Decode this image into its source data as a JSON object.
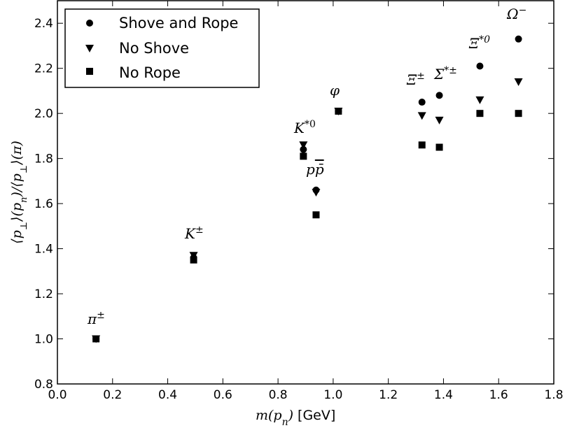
{
  "chart_data": {
    "type": "scatter",
    "xlabel": "m(p_n) [GeV]",
    "xlabel_main": "m(p",
    "xlabel_sub": "n",
    "xlabel_close": ")",
    "xlabel_unit": "[GeV]",
    "ylabel": "⟨p⊥⟩(p_n)/⟨p⊥⟩(π)",
    "xlim": [
      0.0,
      1.8
    ],
    "ylim": [
      0.8,
      2.5
    ],
    "xticks": [
      0.0,
      0.2,
      0.4,
      0.6,
      0.8,
      1.0,
      1.2,
      1.4,
      1.6,
      1.8
    ],
    "xtick_labels": [
      "0.0",
      "0.2",
      "0.4",
      "0.6",
      "0.8",
      "1.0",
      "1.2",
      "1.4",
      "1.6",
      "1.8"
    ],
    "yticks": [
      0.8,
      1.0,
      1.2,
      1.4,
      1.6,
      1.8,
      2.0,
      2.2,
      2.4
    ],
    "ytick_labels": [
      "0.8",
      "1.0",
      "1.2",
      "1.4",
      "1.6",
      "1.8",
      "2.0",
      "2.2",
      "2.4"
    ],
    "grid": false,
    "legend_position": "top-left",
    "series": [
      {
        "name": "Shove and Rope",
        "marker": "circle",
        "color": "#000000",
        "x": [
          0.14,
          0.494,
          0.892,
          0.938,
          1.019,
          1.322,
          1.385,
          1.532,
          1.672
        ],
        "y": [
          1.0,
          1.36,
          1.84,
          1.66,
          2.01,
          2.05,
          2.08,
          2.21,
          2.33
        ]
      },
      {
        "name": "No Shove",
        "marker": "triangle-down",
        "color": "#000000",
        "x": [
          0.14,
          0.494,
          0.892,
          0.938,
          1.019,
          1.322,
          1.385,
          1.532,
          1.672
        ],
        "y": [
          1.0,
          1.37,
          1.86,
          1.65,
          2.01,
          1.99,
          1.97,
          2.06,
          2.14
        ]
      },
      {
        "name": "No Rope",
        "marker": "square",
        "color": "#000000",
        "x": [
          0.14,
          0.494,
          0.892,
          0.938,
          1.019,
          1.322,
          1.385,
          1.532,
          1.672
        ],
        "y": [
          1.0,
          1.35,
          1.81,
          1.55,
          2.01,
          1.86,
          1.85,
          2.0,
          2.0
        ]
      }
    ],
    "annotations": [
      {
        "text": "π±",
        "x": 0.14
      },
      {
        "text": "K±",
        "x": 0.494
      },
      {
        "text": "K*0",
        "x": 0.892
      },
      {
        "text": "pp̄",
        "x": 0.938
      },
      {
        "text": "φ",
        "x": 1.019
      },
      {
        "text": "Ξ±",
        "x": 1.322
      },
      {
        "text": "Σ*±",
        "x": 1.385
      },
      {
        "text": "Ξ*0",
        "x": 1.532
      },
      {
        "text": "Ω−",
        "x": 1.672
      }
    ]
  }
}
